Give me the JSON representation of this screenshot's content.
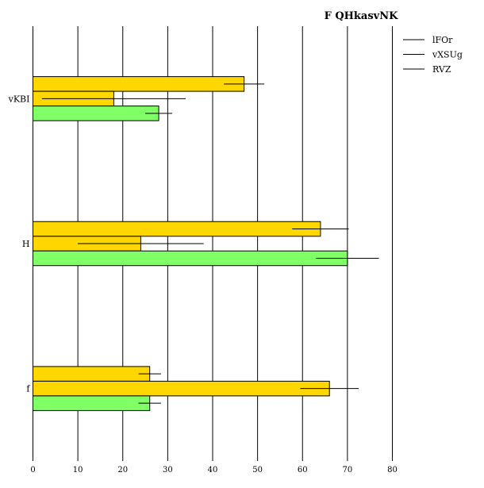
{
  "chart_data": {
    "type": "bar",
    "orientation": "horizontal",
    "title": "F QHkasvNK",
    "xlabel": "",
    "ylabel": "",
    "xlim": [
      0,
      80
    ],
    "xticks": [
      0,
      10,
      20,
      30,
      40,
      50,
      60,
      70,
      80
    ],
    "grid": "vertical",
    "legend_position": "top-right",
    "categories": [
      "vKBI",
      "H",
      "f"
    ],
    "series": [
      {
        "name": "lFOr",
        "color": "#FFD700",
        "values": [
          47,
          64,
          26
        ],
        "errors": [
          4.5,
          6.3,
          2.5
        ]
      },
      {
        "name": "vXSUg",
        "color": "#FFD700",
        "values": [
          18,
          24,
          66
        ],
        "errors": [
          16,
          14,
          6.5
        ]
      },
      {
        "name": "RVZ",
        "color": "#80FF66",
        "values": [
          28,
          70,
          26
        ],
        "errors": [
          3,
          7,
          2.5
        ]
      }
    ]
  }
}
